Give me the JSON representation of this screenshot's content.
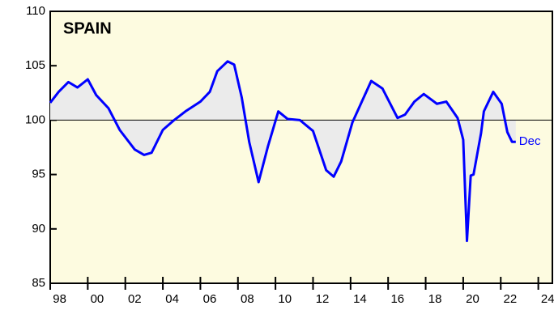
{
  "chart_data": {
    "type": "line",
    "title": "SPAIN",
    "annotation": "Dec",
    "x": [
      1998.0,
      1998.45,
      1998.97,
      1999.45,
      2000.0,
      2000.45,
      2001.1,
      2001.7,
      2002.5,
      2003.0,
      2003.4,
      2004.0,
      2004.6,
      2005.2,
      2006.0,
      2006.5,
      2006.9,
      2007.45,
      2007.8,
      2008.2,
      2008.6,
      2009.1,
      2009.6,
      2010.15,
      2010.65,
      2011.3,
      2012.0,
      2012.7,
      2013.1,
      2013.5,
      2014.1,
      2014.6,
      2015.1,
      2015.7,
      2016.5,
      2016.9,
      2017.4,
      2017.9,
      2018.6,
      2019.1,
      2019.7,
      2020.0,
      2020.2,
      2020.4,
      2020.55,
      2020.95,
      2021.1,
      2021.6,
      2022.05,
      2022.35,
      2022.6,
      2022.8
    ],
    "series": [
      {
        "color": "#0000ff",
        "values": [
          101.6,
          102.6,
          103.5,
          103.0,
          103.75,
          102.3,
          101.1,
          99.1,
          97.3,
          96.8,
          97.0,
          99.1,
          100.0,
          100.8,
          101.7,
          102.6,
          104.5,
          105.4,
          105.1,
          102.1,
          98.0,
          94.3,
          97.6,
          100.8,
          100.1,
          100.0,
          99.0,
          95.4,
          94.8,
          96.2,
          99.8,
          101.7,
          103.6,
          102.9,
          100.2,
          100.5,
          101.7,
          102.4,
          101.5,
          101.7,
          100.2,
          98.2,
          88.9,
          94.9,
          95.0,
          98.8,
          100.8,
          102.6,
          101.5,
          98.9,
          98.0,
          98.0
        ]
      }
    ],
    "baseline": 100,
    "xlim": [
      1998,
      2024.75
    ],
    "xticks": [
      {
        "value": 1998.5,
        "label": "98"
      },
      {
        "value": 2000.5,
        "label": "00"
      },
      {
        "value": 2002.5,
        "label": "02"
      },
      {
        "value": 2004.5,
        "label": "04"
      },
      {
        "value": 2006.5,
        "label": "06"
      },
      {
        "value": 2008.5,
        "label": "08"
      },
      {
        "value": 2010.5,
        "label": "10"
      },
      {
        "value": 2012.5,
        "label": "12"
      },
      {
        "value": 2014.5,
        "label": "14"
      },
      {
        "value": 2016.5,
        "label": "16"
      },
      {
        "value": 2018.5,
        "label": "18"
      },
      {
        "value": 2020.5,
        "label": "20"
      },
      {
        "value": 2022.5,
        "label": "22"
      },
      {
        "value": 2024.5,
        "label": "24"
      }
    ],
    "ylim": [
      85,
      110
    ],
    "yticks": [
      85,
      90,
      95,
      100,
      105,
      110
    ],
    "background": "#fdfbe0",
    "area_color": "#ebebeb"
  }
}
